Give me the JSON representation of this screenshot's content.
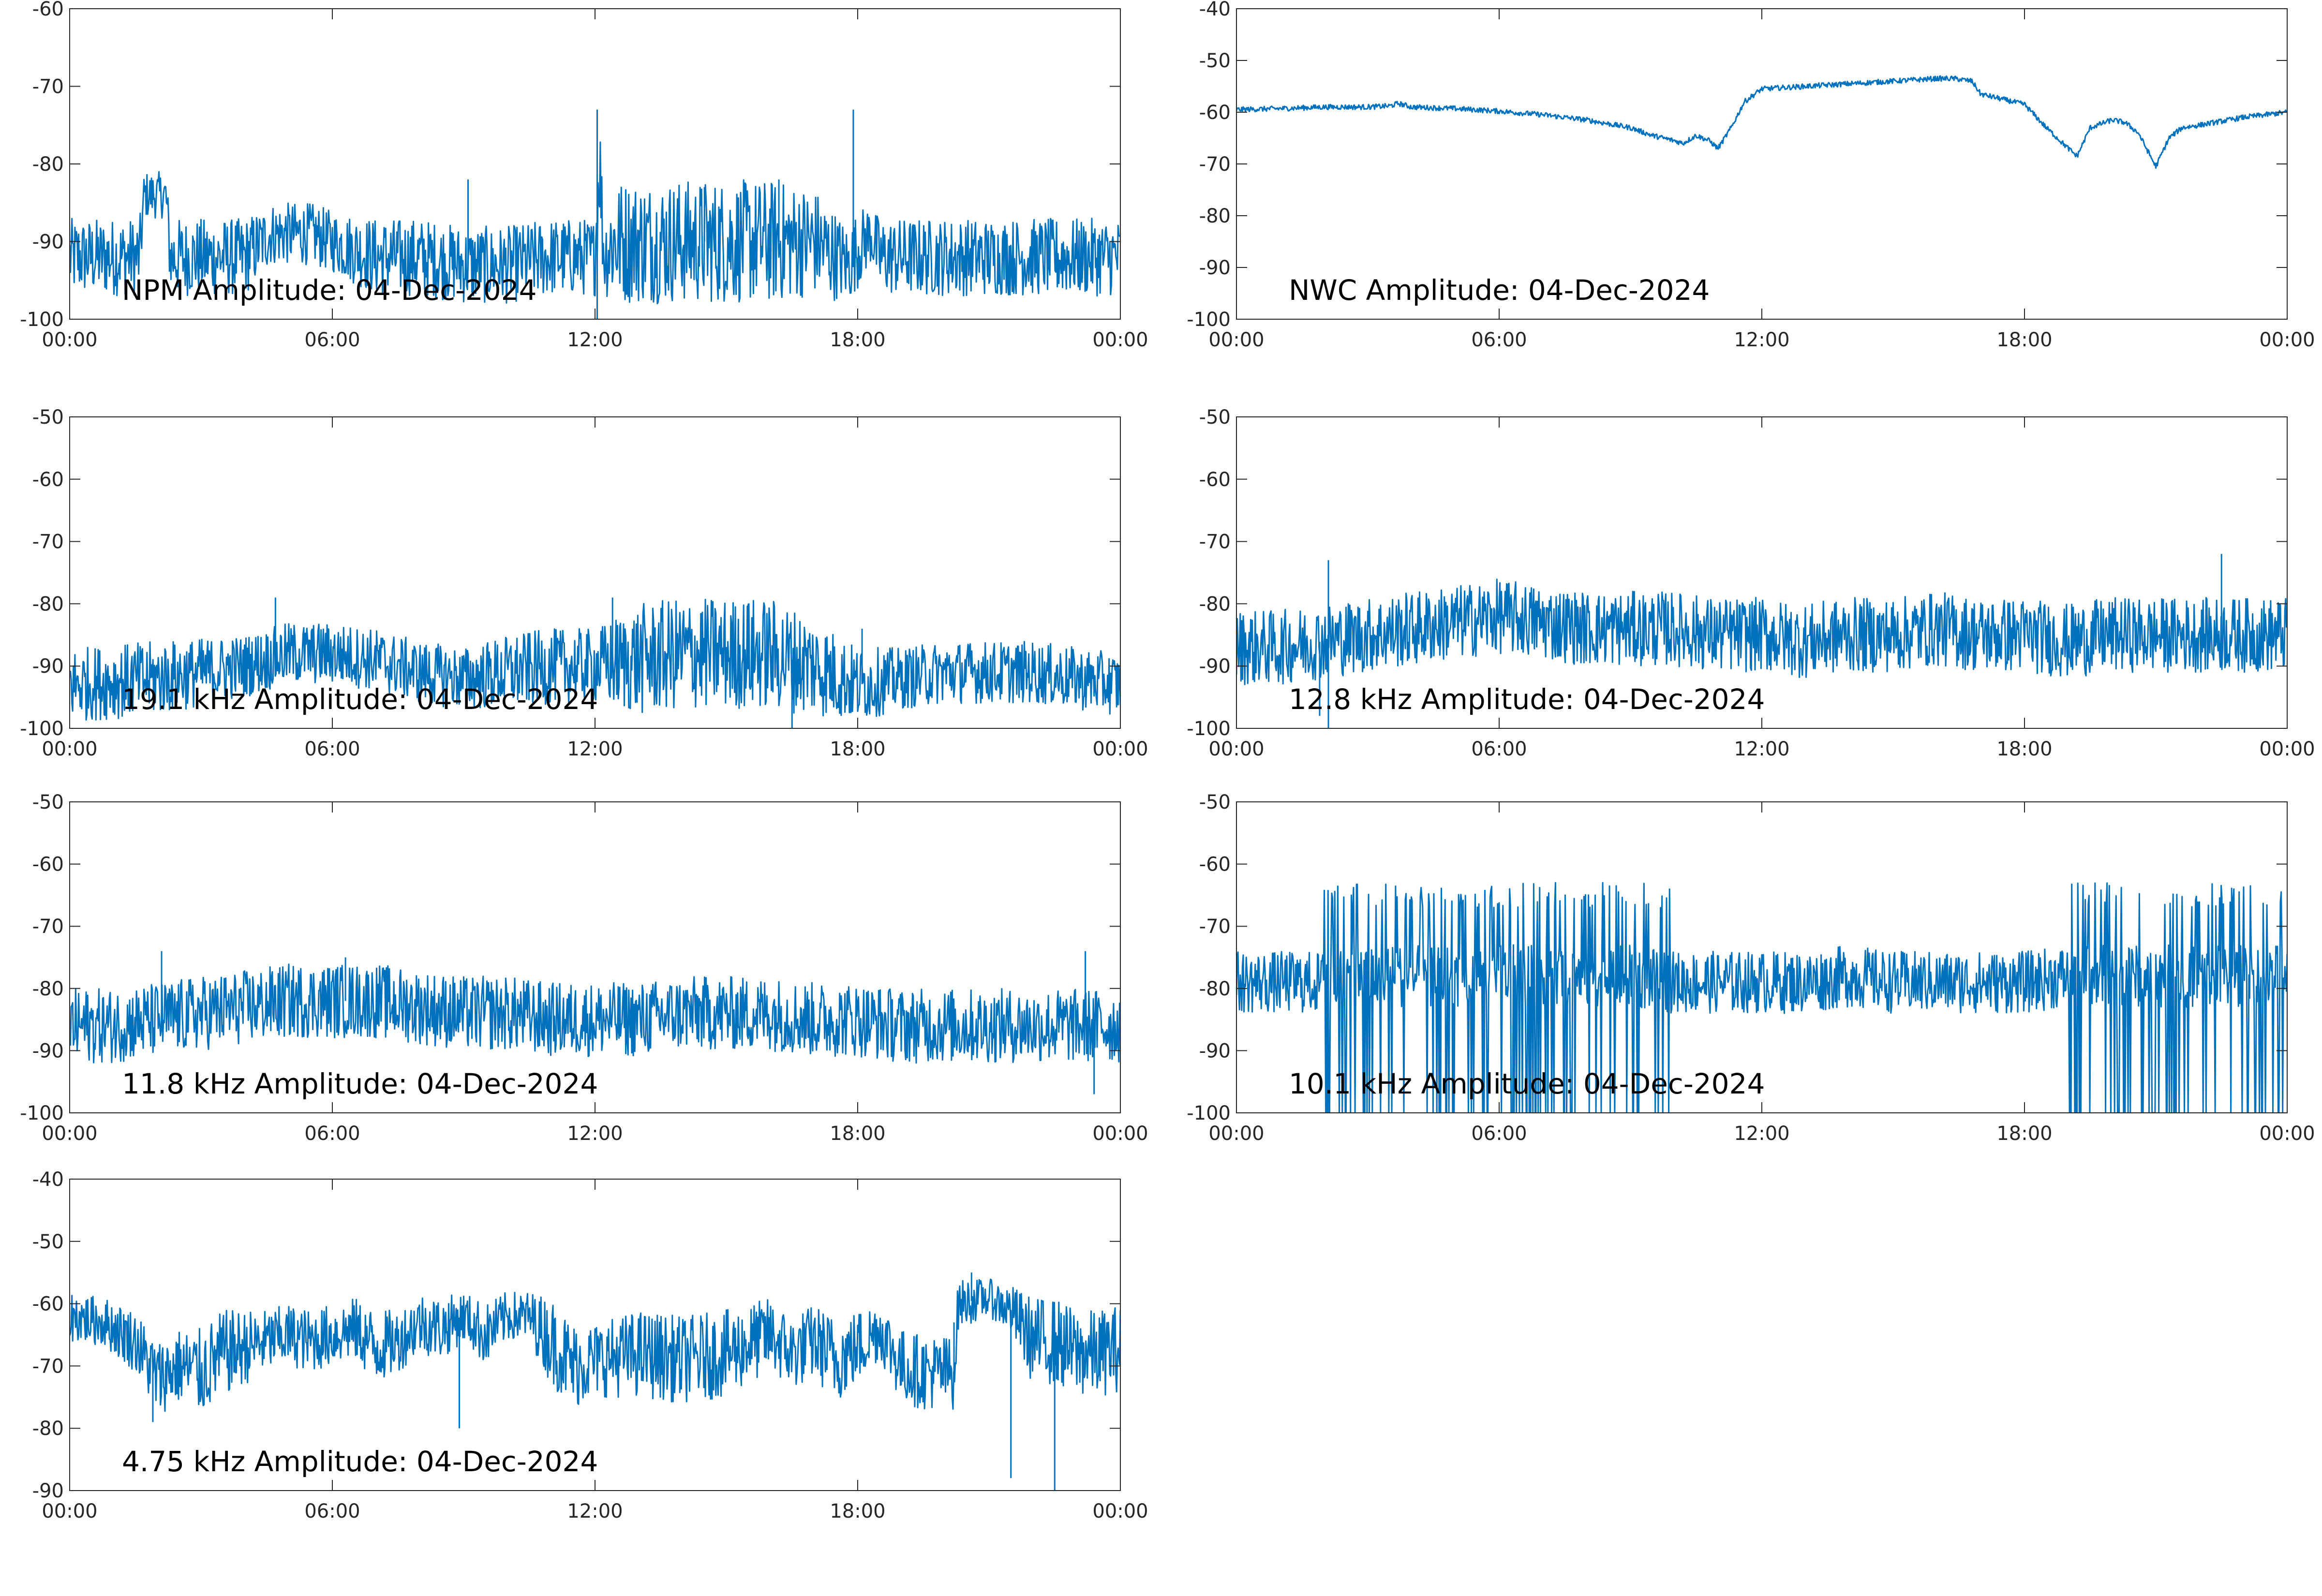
{
  "figure": {
    "background": "#ffffff",
    "line_color": "#0072BD",
    "axis_color": "#262626"
  },
  "chart_data": [
    {
      "type": "line",
      "title": "NPM Amplitude: 04-Dec-2024",
      "xlabel": "",
      "ylabel": "",
      "xlim": [
        "00:00",
        "24:00"
      ],
      "ylim": [
        -100,
        -60
      ],
      "xticks": [
        "00:00",
        "06:00",
        "12:00",
        "18:00",
        "00:00"
      ],
      "yticks": [
        -60,
        -70,
        -80,
        -90,
        -100
      ],
      "grid": false,
      "series": [
        {
          "x_hours": [
            0,
            1,
            1.6,
            1.7,
            2.2,
            2.3,
            3,
            4,
            4.6,
            5,
            5.5,
            6,
            7,
            8,
            9,
            10,
            11,
            12,
            12.1,
            12.2,
            12.4,
            13,
            14,
            15,
            16,
            17,
            17.8,
            18,
            18.3,
            18.5,
            19,
            20,
            21,
            22,
            23,
            24
          ],
          "mean": [
            -92,
            -92,
            -92,
            -84,
            -84,
            -92,
            -92,
            -92,
            -89,
            -89,
            -89,
            -90,
            -92,
            -92,
            -93,
            -93,
            -92,
            -92,
            -79,
            -92,
            -90,
            -90,
            -90,
            -90,
            -90,
            -90,
            -93,
            -91,
            -89,
            -92,
            -92,
            -92,
            -92,
            -92,
            -92,
            -92
          ],
          "spread": [
            5,
            5,
            5,
            3,
            3,
            5,
            5,
            5,
            4,
            4,
            4,
            4,
            5,
            5,
            5,
            5,
            5,
            5,
            8,
            5,
            8,
            8,
            8,
            8,
            8,
            7,
            5,
            5,
            4,
            5,
            5,
            5,
            5,
            5,
            5,
            5
          ],
          "spikes": [
            [
              9.1,
              -82
            ],
            [
              12.05,
              -73
            ],
            [
              17.9,
              -73
            ],
            [
              12.05,
              -100
            ],
            [
              14.5,
              -83
            ],
            [
              16.2,
              -82
            ]
          ]
        }
      ]
    },
    {
      "type": "line",
      "title": "NWC Amplitude: 04-Dec-2024",
      "xlabel": "",
      "ylabel": "",
      "xlim": [
        "00:00",
        "24:00"
      ],
      "ylim": [
        -100,
        -40
      ],
      "xticks": [
        "00:00",
        "06:00",
        "12:00",
        "18:00",
        "00:00"
      ],
      "yticks": [
        -40,
        -50,
        -60,
        -70,
        -80,
        -90,
        -100
      ],
      "grid": false,
      "series": [
        {
          "x_hours": [
            0,
            1,
            2,
            3,
            3.5,
            3.7,
            4,
            5,
            6,
            7,
            8,
            9,
            9.5,
            10,
            10.2,
            10.5,
            10.8,
            11,
            11.3,
            11.6,
            12,
            13,
            14,
            15,
            16,
            16.4,
            16.8,
            17,
            17.5,
            18,
            18.5,
            19,
            19.2,
            19.5,
            20,
            20.3,
            20.6,
            21,
            21.3,
            21.6,
            22,
            23,
            24
          ],
          "mean": [
            -59.5,
            -59.3,
            -59,
            -59,
            -58.8,
            -58.3,
            -59,
            -59.3,
            -59.8,
            -60.5,
            -61.5,
            -63,
            -64.5,
            -65.5,
            -66,
            -64.5,
            -65.5,
            -67,
            -63,
            -58,
            -55.5,
            -55,
            -54.5,
            -54,
            -53.5,
            -53.5,
            -54,
            -56.5,
            -57.5,
            -58.5,
            -63,
            -67,
            -68.5,
            -63,
            -61.5,
            -62,
            -64,
            -70.5,
            -65,
            -63,
            -62.5,
            -61,
            -60
          ],
          "spread": [
            0.5
          ],
          "spikes": []
        }
      ]
    },
    {
      "type": "line",
      "title": "19.1 kHz Amplitude: 04-Dec-2024",
      "xlabel": "",
      "ylabel": "",
      "xlim": [
        "00:00",
        "24:00"
      ],
      "ylim": [
        -100,
        -50
      ],
      "xticks": [
        "00:00",
        "06:00",
        "12:00",
        "18:00",
        "00:00"
      ],
      "yticks": [
        -50,
        -60,
        -70,
        -80,
        -90,
        -100
      ],
      "grid": false,
      "series": [
        {
          "x_hours": [
            0,
            2,
            4,
            5,
            6,
            7,
            8,
            9,
            10,
            11,
            12,
            13,
            14,
            15,
            16,
            17,
            18,
            19,
            20,
            21,
            22,
            23,
            24
          ],
          "mean": [
            -93,
            -92,
            -90,
            -88,
            -88,
            -89,
            -91,
            -92,
            -91,
            -90,
            -90,
            -89,
            -88,
            -88,
            -88,
            -90,
            -93,
            -92,
            -91,
            -91,
            -91,
            -92,
            -93
          ],
          "spread": [
            6,
            6,
            5,
            5,
            5,
            5,
            5,
            5,
            6,
            6,
            6,
            9,
            9,
            9,
            9,
            8,
            6,
            5,
            5,
            5,
            5,
            5,
            5
          ],
          "spikes": [
            [
              4.7,
              -79
            ],
            [
              12.4,
              -79
            ],
            [
              15.5,
              -80
            ],
            [
              18.1,
              -84
            ],
            [
              16.5,
              -100
            ]
          ]
        }
      ]
    },
    {
      "type": "line",
      "title": "12.8 kHz Amplitude: 04-Dec-2024",
      "xlabel": "",
      "ylabel": "",
      "xlim": [
        "00:00",
        "24:00"
      ],
      "ylim": [
        -100,
        -50
      ],
      "xticks": [
        "00:00",
        "06:00",
        "12:00",
        "18:00",
        "00:00"
      ],
      "yticks": [
        -50,
        -60,
        -70,
        -80,
        -90,
        -100
      ],
      "grid": false,
      "series": [
        {
          "x_hours": [
            0,
            1,
            2,
            3,
            4,
            5,
            6,
            7,
            8,
            9,
            10,
            11,
            12,
            13,
            14,
            15,
            16,
            17,
            18,
            19,
            20,
            21,
            22,
            23,
            24
          ],
          "mean": [
            -87,
            -87,
            -86,
            -85,
            -84,
            -83,
            -82,
            -83,
            -84,
            -84,
            -84,
            -85,
            -85,
            -86,
            -85,
            -85,
            -84,
            -85,
            -85,
            -86,
            -85,
            -85,
            -85,
            -85,
            -85
          ],
          "spread": [
            6
          ],
          "spikes": [
            [
              2.1,
              -73
            ],
            [
              2.1,
              -100
            ],
            [
              22.5,
              -72
            ],
            [
              1.9,
              -98
            ]
          ]
        }
      ]
    },
    {
      "type": "line",
      "title": "11.8 kHz Amplitude: 04-Dec-2024",
      "xlabel": "",
      "ylabel": "",
      "xlim": [
        "00:00",
        "24:00"
      ],
      "ylim": [
        -100,
        -50
      ],
      "xticks": [
        "00:00",
        "06:00",
        "12:00",
        "18:00",
        "00:00"
      ],
      "yticks": [
        -50,
        -60,
        -70,
        -80,
        -90,
        -100
      ],
      "grid": false,
      "series": [
        {
          "x_hours": [
            0,
            1,
            2,
            3,
            4,
            5,
            6,
            7,
            8,
            9,
            10,
            11,
            12,
            13,
            14,
            15,
            16,
            17,
            18,
            19,
            20,
            21,
            22,
            23,
            24
          ],
          "mean": [
            -86,
            -86,
            -85,
            -84,
            -83,
            -82,
            -82,
            -82,
            -83,
            -84,
            -84,
            -85,
            -85,
            -85,
            -84,
            -84,
            -84,
            -85,
            -85,
            -86,
            -86,
            -86,
            -86,
            -86,
            -86
          ],
          "spread": [
            6
          ],
          "spikes": [
            [
              2.1,
              -74
            ],
            [
              23.2,
              -74
            ],
            [
              23.4,
              -97
            ],
            [
              6.3,
              -75
            ]
          ]
        }
      ]
    },
    {
      "type": "line",
      "title": "10.1 kHz Amplitude: 04-Dec-2024",
      "xlabel": "",
      "ylabel": "",
      "xlim": [
        "00:00",
        "24:00"
      ],
      "ylim": [
        -100,
        -50
      ],
      "xticks": [
        "00:00",
        "06:00",
        "12:00",
        "18:00",
        "00:00"
      ],
      "yticks": [
        -50,
        -60,
        -70,
        -80,
        -90,
        -100
      ],
      "grid": false,
      "series": [
        {
          "x_hours": [
            0,
            1,
            2,
            3,
            4,
            5,
            6,
            7,
            8,
            9,
            10,
            11,
            12,
            13,
            14,
            15,
            16,
            17,
            18,
            19,
            20,
            21,
            22,
            23,
            24
          ],
          "mean": [
            -79,
            -79,
            -79,
            -78,
            -78,
            -78,
            -78,
            -78,
            -78,
            -78,
            -79,
            -79,
            -79,
            -79,
            -78,
            -79,
            -79,
            -79,
            -79,
            -78,
            -78,
            -78,
            -78,
            -78,
            -78
          ],
          "spread": [
            5
          ],
          "spikes": [],
          "burst_ranges_hours": [
            [
              2.0,
              9.9
            ],
            [
              19.0,
              24.0
            ]
          ],
          "burst_range_db": [
            -100,
            -63
          ]
        }
      ]
    },
    {
      "type": "line",
      "title": "4.75 kHz Amplitude: 04-Dec-2024",
      "xlabel": "",
      "ylabel": "",
      "xlim": [
        "00:00",
        "24:00"
      ],
      "ylim": [
        -90,
        -40
      ],
      "xticks": [
        "00:00",
        "06:00",
        "12:00",
        "18:00",
        "00:00"
      ],
      "yticks": [
        -40,
        -50,
        -60,
        -70,
        -80,
        -90
      ],
      "grid": false,
      "series": [
        {
          "x_hours": [
            0,
            0.8,
            1.5,
            2,
            2.5,
            3,
            3.5,
            4,
            4.5,
            5,
            5.5,
            6,
            6.5,
            7,
            7.5,
            8,
            8.5,
            9,
            9.5,
            10,
            10.5,
            11,
            11.5,
            12,
            13,
            14,
            15,
            16,
            16.5,
            17,
            17.5,
            18,
            18.5,
            19,
            19.5,
            20.2,
            20.3,
            21,
            21.5,
            22,
            22.5,
            23,
            23.5,
            24
          ],
          "mean": [
            -62,
            -63,
            -66,
            -72,
            -70,
            -71,
            -68,
            -67,
            -66,
            -65,
            -66,
            -65,
            -64,
            -67,
            -66,
            -63,
            -64,
            -62,
            -65,
            -62,
            -62,
            -66,
            -70,
            -69,
            -68,
            -69,
            -68,
            -65,
            -68,
            -66,
            -69,
            -67,
            -64,
            -70,
            -71,
            -71,
            -60,
            -59,
            -61,
            -66,
            -66,
            -68,
            -68,
            -67
          ],
          "spread": [
            4,
            4,
            5,
            6,
            6,
            7,
            7,
            6,
            5,
            5,
            5,
            5,
            5,
            6,
            5,
            5,
            5,
            4,
            5,
            4,
            4,
            7,
            7,
            6,
            7,
            7,
            7,
            6,
            6,
            6,
            7,
            6,
            5,
            6,
            6,
            6,
            4,
            3,
            4,
            7,
            7,
            7,
            7,
            7
          ],
          "spikes": [
            [
              20.2,
              -63
            ],
            [
              20.6,
              -55
            ],
            [
              21.5,
              -88
            ],
            [
              22.5,
              -90
            ],
            [
              1.9,
              -79
            ],
            [
              8.9,
              -80
            ]
          ]
        }
      ]
    }
  ]
}
